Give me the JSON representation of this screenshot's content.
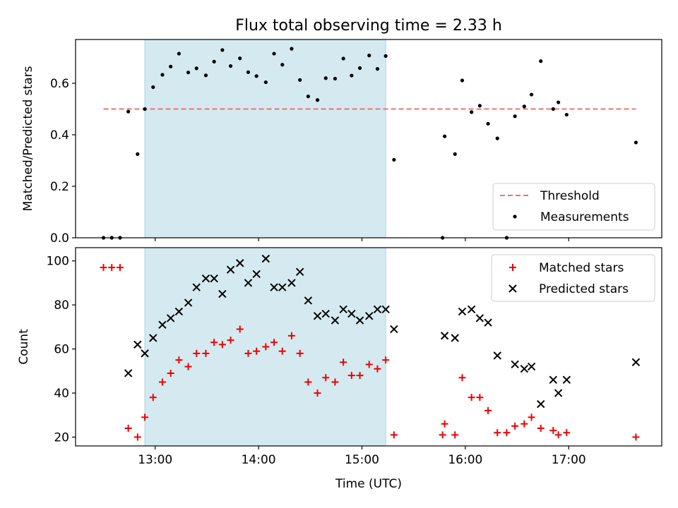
{
  "title": "Flux total observing time = 2.33 h",
  "colors": {
    "threshold": "#f07070",
    "span": "#d4eaf0",
    "span_edge": "#a8d4e0",
    "matched": "#ee0000",
    "predicted": "#000000",
    "measure": "#000000"
  },
  "chart_data": [
    {
      "type": "scatter",
      "ylabel": "Matched/Predicted stars",
      "ylim": [
        0,
        0.77
      ],
      "xlim": [
        12.23,
        17.9
      ],
      "yticks": [
        "0.0",
        "0.2",
        "0.4",
        "0.6"
      ],
      "ytick_values": [
        0,
        0.2,
        0.4,
        0.6
      ],
      "xticks": [
        13,
        14,
        15,
        16,
        17
      ],
      "shaded_span": [
        12.9,
        15.23
      ],
      "threshold": {
        "name": "Threshold",
        "x": [
          12.5,
          17.65
        ],
        "y": 0.5
      },
      "legend": {
        "placement": "lower right",
        "entries": [
          "Threshold",
          "Measurements"
        ]
      },
      "series": [
        {
          "name": "Measurements",
          "points": [
            [
              12.5,
              0.0
            ],
            [
              12.58,
              0.0
            ],
            [
              12.66,
              0.0
            ],
            [
              12.74,
              0.49
            ],
            [
              12.83,
              0.325
            ],
            [
              12.9,
              0.5
            ],
            [
              12.98,
              0.585
            ],
            [
              13.07,
              0.633
            ],
            [
              13.15,
              0.665
            ],
            [
              13.23,
              0.715
            ],
            [
              13.32,
              0.642
            ],
            [
              13.4,
              0.658
            ],
            [
              13.49,
              0.631
            ],
            [
              13.57,
              0.684
            ],
            [
              13.65,
              0.729
            ],
            [
              13.73,
              0.667
            ],
            [
              13.82,
              0.697
            ],
            [
              13.9,
              0.643
            ],
            [
              13.98,
              0.628
            ],
            [
              14.07,
              0.604
            ],
            [
              14.15,
              0.715
            ],
            [
              14.23,
              0.672
            ],
            [
              14.32,
              0.734
            ],
            [
              14.4,
              0.613
            ],
            [
              14.48,
              0.549
            ],
            [
              14.57,
              0.535
            ],
            [
              14.65,
              0.62
            ],
            [
              14.74,
              0.618
            ],
            [
              14.82,
              0.696
            ],
            [
              14.9,
              0.63
            ],
            [
              14.98,
              0.659
            ],
            [
              15.07,
              0.708
            ],
            [
              15.15,
              0.656
            ],
            [
              15.23,
              0.706
            ],
            [
              15.31,
              0.303
            ],
            [
              15.78,
              0.0
            ],
            [
              15.8,
              0.394
            ],
            [
              15.9,
              0.325
            ],
            [
              15.97,
              0.611
            ],
            [
              16.06,
              0.488
            ],
            [
              16.14,
              0.513
            ],
            [
              16.22,
              0.443
            ],
            [
              16.31,
              0.386
            ],
            [
              16.4,
              0.0
            ],
            [
              16.48,
              0.472
            ],
            [
              16.57,
              0.51
            ],
            [
              16.64,
              0.556
            ],
            [
              16.73,
              0.686
            ],
            [
              16.85,
              0.5
            ],
            [
              16.9,
              0.526
            ],
            [
              16.98,
              0.478
            ],
            [
              17.65,
              0.37
            ]
          ]
        }
      ]
    },
    {
      "type": "scatter",
      "xlabel": "Time (UTC)",
      "ylabel": "Count",
      "ylim": [
        16,
        106
      ],
      "xlim": [
        12.23,
        17.9
      ],
      "yticks": [
        "20",
        "40",
        "60",
        "80",
        "100"
      ],
      "ytick_values": [
        20,
        40,
        60,
        80,
        100
      ],
      "xticks": [
        13,
        14,
        15,
        16,
        17
      ],
      "xtick_labels": [
        "13:00",
        "14:00",
        "15:00",
        "16:00",
        "17:00"
      ],
      "shaded_span": [
        12.9,
        15.23
      ],
      "legend": {
        "placement": "upper right",
        "entries": [
          "Matched stars",
          "Predicted stars"
        ]
      },
      "series": [
        {
          "name": "Matched stars",
          "marker": "+",
          "points": [
            [
              12.5,
              97
            ],
            [
              12.58,
              97
            ],
            [
              12.66,
              97
            ],
            [
              12.74,
              24
            ],
            [
              12.83,
              20
            ],
            [
              12.9,
              29
            ],
            [
              12.98,
              38
            ],
            [
              13.07,
              45
            ],
            [
              13.15,
              49
            ],
            [
              13.23,
              55
            ],
            [
              13.32,
              52
            ],
            [
              13.4,
              58
            ],
            [
              13.49,
              58
            ],
            [
              13.57,
              63
            ],
            [
              13.65,
              62
            ],
            [
              13.73,
              64
            ],
            [
              13.82,
              69
            ],
            [
              13.9,
              58
            ],
            [
              13.98,
              59
            ],
            [
              14.07,
              61
            ],
            [
              14.15,
              63
            ],
            [
              14.23,
              59
            ],
            [
              14.32,
              66
            ],
            [
              14.4,
              58
            ],
            [
              14.48,
              45
            ],
            [
              14.57,
              40
            ],
            [
              14.65,
              47
            ],
            [
              14.74,
              45
            ],
            [
              14.82,
              54
            ],
            [
              14.9,
              48
            ],
            [
              14.98,
              48
            ],
            [
              15.07,
              53
            ],
            [
              15.15,
              51
            ],
            [
              15.23,
              55
            ],
            [
              15.31,
              21
            ],
            [
              15.78,
              21
            ],
            [
              15.8,
              26
            ],
            [
              15.9,
              21
            ],
            [
              15.97,
              47
            ],
            [
              16.06,
              38
            ],
            [
              16.14,
              38
            ],
            [
              16.22,
              32
            ],
            [
              16.31,
              22
            ],
            [
              16.4,
              22
            ],
            [
              16.48,
              25
            ],
            [
              16.57,
              26
            ],
            [
              16.64,
              29
            ],
            [
              16.73,
              24
            ],
            [
              16.85,
              23
            ],
            [
              16.9,
              21
            ],
            [
              16.98,
              22
            ],
            [
              17.65,
              20
            ]
          ]
        },
        {
          "name": "Predicted stars",
          "marker": "x",
          "points": [
            [
              12.74,
              49
            ],
            [
              12.83,
              62
            ],
            [
              12.9,
              58
            ],
            [
              12.98,
              65
            ],
            [
              13.07,
              71
            ],
            [
              13.15,
              74
            ],
            [
              13.23,
              77
            ],
            [
              13.32,
              81
            ],
            [
              13.4,
              88
            ],
            [
              13.49,
              92
            ],
            [
              13.57,
              92
            ],
            [
              13.65,
              85
            ],
            [
              13.73,
              96
            ],
            [
              13.82,
              99
            ],
            [
              13.9,
              90
            ],
            [
              13.98,
              94
            ],
            [
              14.07,
              101
            ],
            [
              14.15,
              88
            ],
            [
              14.23,
              88
            ],
            [
              14.32,
              90
            ],
            [
              14.4,
              95
            ],
            [
              14.48,
              82
            ],
            [
              14.57,
              75
            ],
            [
              14.65,
              76
            ],
            [
              14.74,
              73
            ],
            [
              14.82,
              78
            ],
            [
              14.9,
              76
            ],
            [
              14.98,
              73
            ],
            [
              15.07,
              75
            ],
            [
              15.15,
              78
            ],
            [
              15.23,
              78
            ],
            [
              15.31,
              69
            ],
            [
              15.8,
              66
            ],
            [
              15.9,
              65
            ],
            [
              15.97,
              77
            ],
            [
              16.06,
              78
            ],
            [
              16.14,
              74
            ],
            [
              16.22,
              72
            ],
            [
              16.31,
              57
            ],
            [
              16.48,
              53
            ],
            [
              16.57,
              51
            ],
            [
              16.64,
              52
            ],
            [
              16.73,
              35
            ],
            [
              16.85,
              46
            ],
            [
              16.9,
              40
            ],
            [
              16.98,
              46
            ],
            [
              17.65,
              54
            ]
          ]
        }
      ]
    }
  ]
}
